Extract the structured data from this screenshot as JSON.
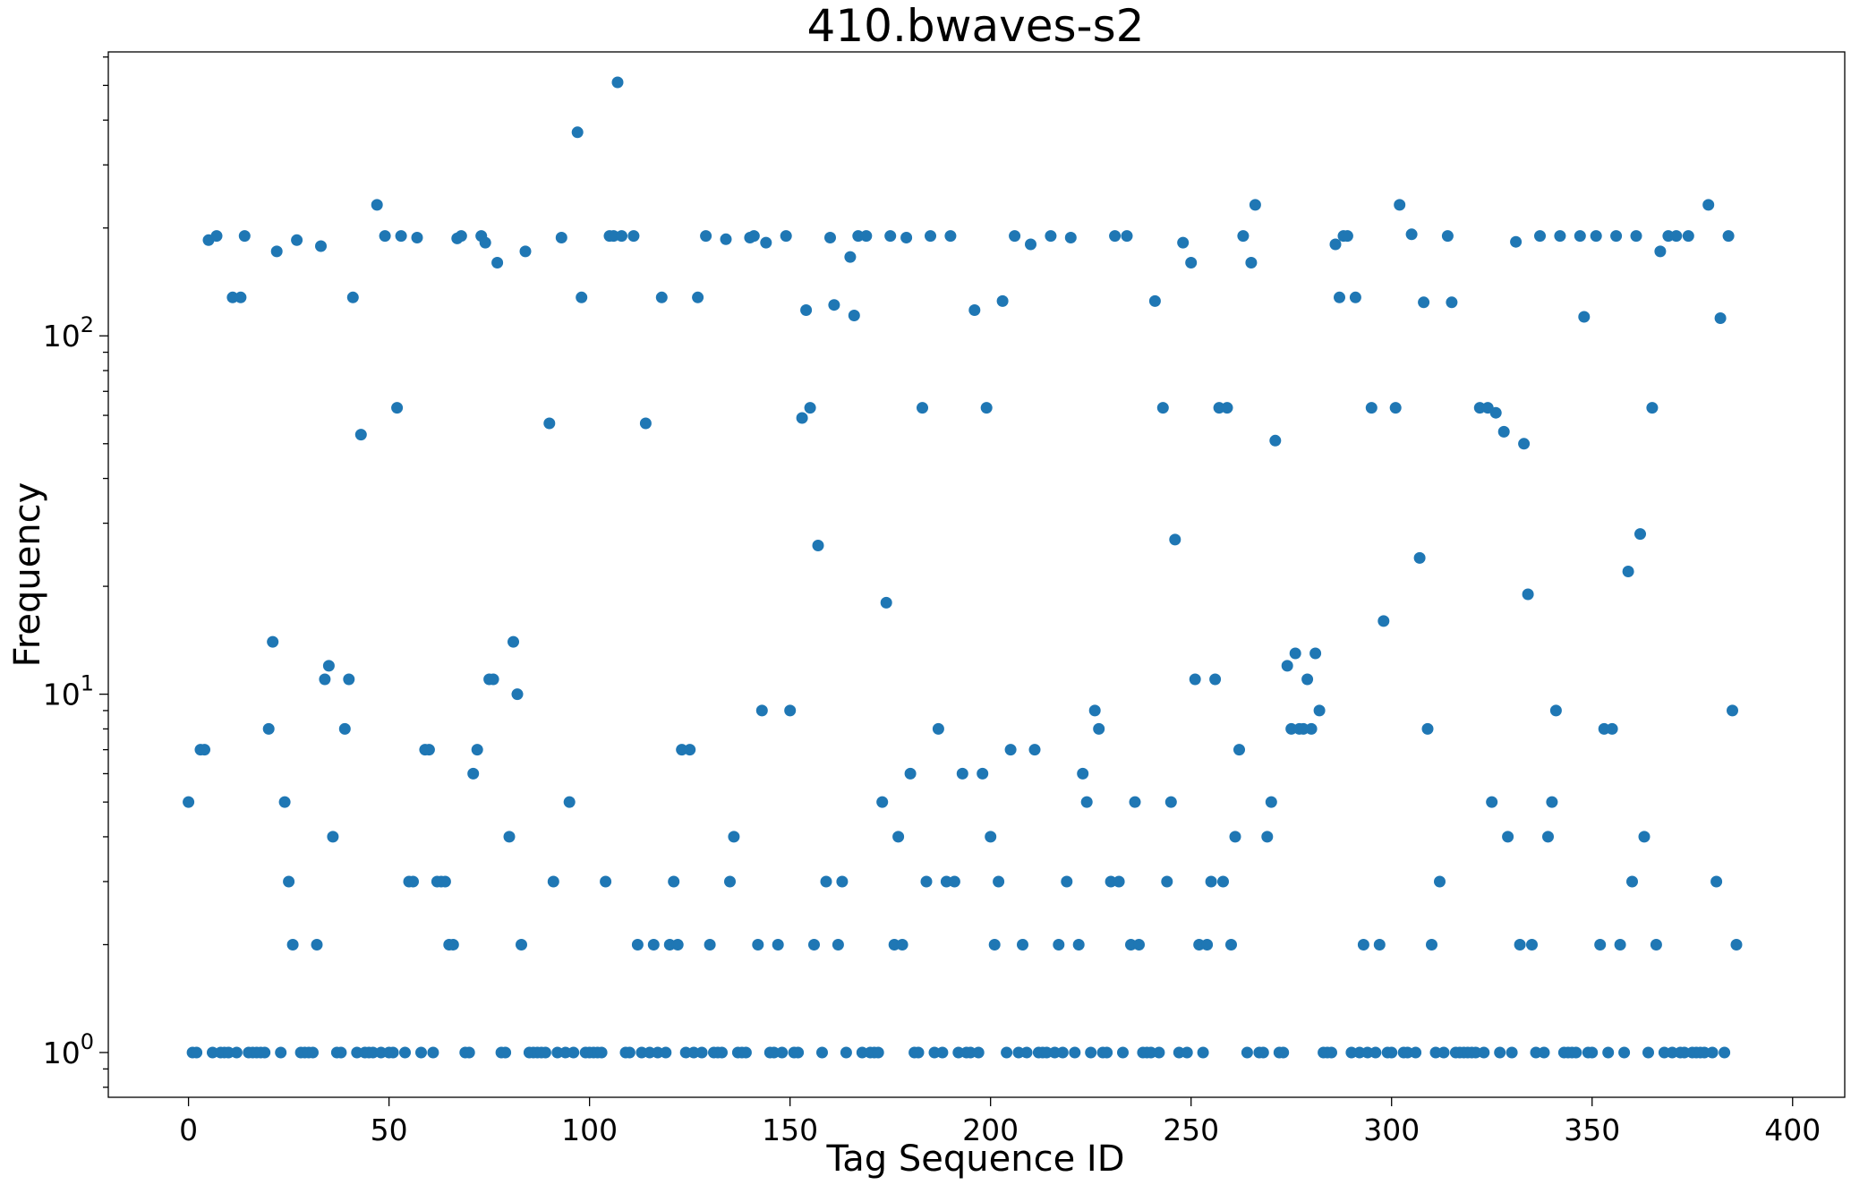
{
  "chart_data": {
    "type": "scatter",
    "title": "410.bwaves-s2",
    "xlabel": "Tag Sequence ID",
    "ylabel": "Frequency",
    "xlim": [
      -20,
      413
    ],
    "ylim": [
      0.75,
      620
    ],
    "yscale": "log",
    "grid": false,
    "marker_color": "#1f77b4",
    "x_ticks": [
      0,
      50,
      100,
      150,
      200,
      250,
      300,
      350,
      400
    ],
    "x_tick_labels": [
      "0",
      "50",
      "100",
      "150",
      "200",
      "250",
      "300",
      "350",
      "400"
    ],
    "y_ticks": [
      1,
      10,
      100
    ],
    "y_tick_labels": [
      {
        "base": "10",
        "exp": "0"
      },
      {
        "base": "10",
        "exp": "1"
      },
      {
        "base": "10",
        "exp": "2"
      }
    ],
    "points": [
      [
        0,
        5
      ],
      [
        1,
        1
      ],
      [
        2,
        1
      ],
      [
        3,
        7
      ],
      [
        4,
        7
      ],
      [
        5,
        185
      ],
      [
        6,
        1
      ],
      [
        7,
        190
      ],
      [
        8,
        1
      ],
      [
        9,
        1
      ],
      [
        10,
        1
      ],
      [
        11,
        128
      ],
      [
        12,
        1
      ],
      [
        13,
        128
      ],
      [
        14,
        190
      ],
      [
        15,
        1
      ],
      [
        16,
        1
      ],
      [
        17,
        1
      ],
      [
        18,
        1
      ],
      [
        19,
        1
      ],
      [
        20,
        8
      ],
      [
        21,
        14
      ],
      [
        22,
        172
      ],
      [
        23,
        1
      ],
      [
        24,
        5
      ],
      [
        25,
        3
      ],
      [
        26,
        2
      ],
      [
        27,
        185
      ],
      [
        28,
        1
      ],
      [
        29,
        1
      ],
      [
        30,
        1
      ],
      [
        31,
        1
      ],
      [
        32,
        2
      ],
      [
        33,
        178
      ],
      [
        34,
        11
      ],
      [
        35,
        12
      ],
      [
        36,
        4
      ],
      [
        37,
        1
      ],
      [
        38,
        1
      ],
      [
        39,
        8
      ],
      [
        40,
        11
      ],
      [
        41,
        128
      ],
      [
        42,
        1
      ],
      [
        43,
        53
      ],
      [
        44,
        1
      ],
      [
        45,
        1
      ],
      [
        46,
        1
      ],
      [
        47,
        232
      ],
      [
        48,
        1
      ],
      [
        49,
        190
      ],
      [
        50,
        1
      ],
      [
        51,
        1
      ],
      [
        52,
        63
      ],
      [
        53,
        190
      ],
      [
        54,
        1
      ],
      [
        55,
        3
      ],
      [
        56,
        3
      ],
      [
        57,
        188
      ],
      [
        58,
        1
      ],
      [
        59,
        7
      ],
      [
        60,
        7
      ],
      [
        61,
        1
      ],
      [
        62,
        3
      ],
      [
        63,
        3
      ],
      [
        64,
        3
      ],
      [
        65,
        2
      ],
      [
        66,
        2
      ],
      [
        67,
        187
      ],
      [
        68,
        190
      ],
      [
        69,
        1
      ],
      [
        70,
        1
      ],
      [
        71,
        6
      ],
      [
        72,
        7
      ],
      [
        73,
        190
      ],
      [
        74,
        182
      ],
      [
        75,
        11
      ],
      [
        76,
        11
      ],
      [
        77,
        160
      ],
      [
        78,
        1
      ],
      [
        79,
        1
      ],
      [
        80,
        4
      ],
      [
        81,
        14
      ],
      [
        82,
        10
      ],
      [
        83,
        2
      ],
      [
        84,
        172
      ],
      [
        85,
        1
      ],
      [
        86,
        1
      ],
      [
        87,
        1
      ],
      [
        88,
        1
      ],
      [
        89,
        1
      ],
      [
        90,
        57
      ],
      [
        91,
        3
      ],
      [
        92,
        1
      ],
      [
        93,
        188
      ],
      [
        94,
        1
      ],
      [
        95,
        5
      ],
      [
        96,
        1
      ],
      [
        97,
        370
      ],
      [
        98,
        128
      ],
      [
        99,
        1
      ],
      [
        100,
        1
      ],
      [
        101,
        1
      ],
      [
        102,
        1
      ],
      [
        103,
        1
      ],
      [
        104,
        3
      ],
      [
        105,
        190
      ],
      [
        106,
        190
      ],
      [
        107,
        510
      ],
      [
        108,
        190
      ],
      [
        109,
        1
      ],
      [
        110,
        1
      ],
      [
        111,
        190
      ],
      [
        112,
        2
      ],
      [
        113,
        1
      ],
      [
        114,
        57
      ],
      [
        115,
        1
      ],
      [
        116,
        2
      ],
      [
        117,
        1
      ],
      [
        118,
        128
      ],
      [
        119,
        1
      ],
      [
        120,
        2
      ],
      [
        121,
        3
      ],
      [
        122,
        2
      ],
      [
        123,
        7
      ],
      [
        124,
        1
      ],
      [
        125,
        7
      ],
      [
        126,
        1
      ],
      [
        127,
        128
      ],
      [
        128,
        1
      ],
      [
        129,
        190
      ],
      [
        130,
        2
      ],
      [
        131,
        1
      ],
      [
        132,
        1
      ],
      [
        133,
        1
      ],
      [
        134,
        186
      ],
      [
        135,
        3
      ],
      [
        136,
        4
      ],
      [
        137,
        1
      ],
      [
        138,
        1
      ],
      [
        139,
        1
      ],
      [
        140,
        188
      ],
      [
        141,
        190
      ],
      [
        142,
        2
      ],
      [
        143,
        9
      ],
      [
        144,
        182
      ],
      [
        145,
        1
      ],
      [
        146,
        1
      ],
      [
        147,
        2
      ],
      [
        148,
        1
      ],
      [
        149,
        190
      ],
      [
        150,
        9
      ],
      [
        151,
        1
      ],
      [
        152,
        1
      ],
      [
        153,
        59
      ],
      [
        154,
        118
      ],
      [
        155,
        63
      ],
      [
        156,
        2
      ],
      [
        157,
        26
      ],
      [
        158,
        1
      ],
      [
        159,
        3
      ],
      [
        160,
        188
      ],
      [
        161,
        122
      ],
      [
        162,
        2
      ],
      [
        163,
        3
      ],
      [
        164,
        1
      ],
      [
        165,
        166
      ],
      [
        166,
        114
      ],
      [
        167,
        190
      ],
      [
        168,
        1
      ],
      [
        169,
        190
      ],
      [
        170,
        1
      ],
      [
        171,
        1
      ],
      [
        172,
        1
      ],
      [
        173,
        5
      ],
      [
        174,
        18
      ],
      [
        175,
        190
      ],
      [
        176,
        2
      ],
      [
        177,
        4
      ],
      [
        178,
        2
      ],
      [
        179,
        188
      ],
      [
        180,
        6
      ],
      [
        181,
        1
      ],
      [
        182,
        1
      ],
      [
        183,
        63
      ],
      [
        184,
        3
      ],
      [
        185,
        190
      ],
      [
        186,
        1
      ],
      [
        187,
        8
      ],
      [
        188,
        1
      ],
      [
        189,
        3
      ],
      [
        190,
        190
      ],
      [
        191,
        3
      ],
      [
        192,
        1
      ],
      [
        193,
        6
      ],
      [
        194,
        1
      ],
      [
        195,
        1
      ],
      [
        196,
        118
      ],
      [
        197,
        1
      ],
      [
        198,
        6
      ],
      [
        199,
        63
      ],
      [
        200,
        4
      ],
      [
        201,
        2
      ],
      [
        202,
        3
      ],
      [
        203,
        125
      ],
      [
        204,
        1
      ],
      [
        205,
        7
      ],
      [
        206,
        190
      ],
      [
        207,
        1
      ],
      [
        208,
        2
      ],
      [
        209,
        1
      ],
      [
        210,
        180
      ],
      [
        211,
        7
      ],
      [
        212,
        1
      ],
      [
        213,
        1
      ],
      [
        214,
        1
      ],
      [
        215,
        190
      ],
      [
        216,
        1
      ],
      [
        217,
        2
      ],
      [
        218,
        1
      ],
      [
        219,
        3
      ],
      [
        220,
        188
      ],
      [
        221,
        1
      ],
      [
        222,
        2
      ],
      [
        223,
        6
      ],
      [
        224,
        5
      ],
      [
        225,
        1
      ],
      [
        226,
        9
      ],
      [
        227,
        8
      ],
      [
        228,
        1
      ],
      [
        229,
        1
      ],
      [
        230,
        3
      ],
      [
        231,
        190
      ],
      [
        232,
        3
      ],
      [
        233,
        1
      ],
      [
        234,
        190
      ],
      [
        235,
        2
      ],
      [
        236,
        5
      ],
      [
        237,
        2
      ],
      [
        238,
        1
      ],
      [
        239,
        1
      ],
      [
        240,
        1
      ],
      [
        241,
        125
      ],
      [
        242,
        1
      ],
      [
        243,
        63
      ],
      [
        244,
        3
      ],
      [
        245,
        5
      ],
      [
        246,
        27
      ],
      [
        247,
        1
      ],
      [
        248,
        182
      ],
      [
        249,
        1
      ],
      [
        250,
        160
      ],
      [
        251,
        11
      ],
      [
        252,
        2
      ],
      [
        253,
        1
      ],
      [
        254,
        2
      ],
      [
        255,
        3
      ],
      [
        256,
        11
      ],
      [
        257,
        63
      ],
      [
        258,
        3
      ],
      [
        259,
        63
      ],
      [
        260,
        2
      ],
      [
        261,
        4
      ],
      [
        262,
        7
      ],
      [
        263,
        190
      ],
      [
        264,
        1
      ],
      [
        265,
        160
      ],
      [
        266,
        232
      ],
      [
        267,
        1
      ],
      [
        268,
        1
      ],
      [
        269,
        4
      ],
      [
        270,
        5
      ],
      [
        271,
        51
      ],
      [
        272,
        1
      ],
      [
        273,
        1
      ],
      [
        274,
        12
      ],
      [
        275,
        8
      ],
      [
        276,
        13
      ],
      [
        277,
        8
      ],
      [
        278,
        8
      ],
      [
        279,
        11
      ],
      [
        280,
        8
      ],
      [
        281,
        13
      ],
      [
        282,
        9
      ],
      [
        283,
        1
      ],
      [
        284,
        1
      ],
      [
        285,
        1
      ],
      [
        286,
        180
      ],
      [
        287,
        128
      ],
      [
        288,
        190
      ],
      [
        289,
        190
      ],
      [
        290,
        1
      ],
      [
        291,
        128
      ],
      [
        292,
        1
      ],
      [
        293,
        2
      ],
      [
        294,
        1
      ],
      [
        295,
        63
      ],
      [
        296,
        1
      ],
      [
        297,
        2
      ],
      [
        298,
        16
      ],
      [
        299,
        1
      ],
      [
        300,
        1
      ],
      [
        301,
        63
      ],
      [
        302,
        232
      ],
      [
        303,
        1
      ],
      [
        304,
        1
      ],
      [
        305,
        192
      ],
      [
        306,
        1
      ],
      [
        307,
        24
      ],
      [
        308,
        124
      ],
      [
        309,
        8
      ],
      [
        310,
        2
      ],
      [
        311,
        1
      ],
      [
        312,
        3
      ],
      [
        313,
        1
      ],
      [
        314,
        190
      ],
      [
        315,
        124
      ],
      [
        316,
        1
      ],
      [
        317,
        1
      ],
      [
        318,
        1
      ],
      [
        319,
        1
      ],
      [
        320,
        1
      ],
      [
        321,
        1
      ],
      [
        322,
        63
      ],
      [
        323,
        1
      ],
      [
        324,
        63
      ],
      [
        325,
        5
      ],
      [
        326,
        61
      ],
      [
        327,
        1
      ],
      [
        328,
        54
      ],
      [
        329,
        4
      ],
      [
        330,
        1
      ],
      [
        331,
        183
      ],
      [
        332,
        2
      ],
      [
        333,
        50
      ],
      [
        334,
        19
      ],
      [
        335,
        2
      ],
      [
        336,
        1
      ],
      [
        337,
        190
      ],
      [
        338,
        1
      ],
      [
        339,
        4
      ],
      [
        340,
        5
      ],
      [
        341,
        9
      ],
      [
        342,
        190
      ],
      [
        343,
        1
      ],
      [
        344,
        1
      ],
      [
        345,
        1
      ],
      [
        346,
        1
      ],
      [
        347,
        190
      ],
      [
        348,
        113
      ],
      [
        349,
        1
      ],
      [
        350,
        1
      ],
      [
        351,
        190
      ],
      [
        352,
        2
      ],
      [
        353,
        8
      ],
      [
        354,
        1
      ],
      [
        355,
        8
      ],
      [
        356,
        190
      ],
      [
        357,
        2
      ],
      [
        358,
        1
      ],
      [
        359,
        22
      ],
      [
        360,
        3
      ],
      [
        361,
        190
      ],
      [
        362,
        28
      ],
      [
        363,
        4
      ],
      [
        364,
        1
      ],
      [
        365,
        63
      ],
      [
        366,
        2
      ],
      [
        367,
        172
      ],
      [
        368,
        1
      ],
      [
        369,
        190
      ],
      [
        370,
        1
      ],
      [
        371,
        190
      ],
      [
        372,
        1
      ],
      [
        373,
        1
      ],
      [
        374,
        190
      ],
      [
        375,
        1
      ],
      [
        376,
        1
      ],
      [
        377,
        1
      ],
      [
        378,
        1
      ],
      [
        379,
        232
      ],
      [
        380,
        1
      ],
      [
        381,
        3
      ],
      [
        382,
        112
      ],
      [
        383,
        1
      ],
      [
        384,
        190
      ],
      [
        385,
        9
      ],
      [
        386,
        2
      ]
    ]
  }
}
